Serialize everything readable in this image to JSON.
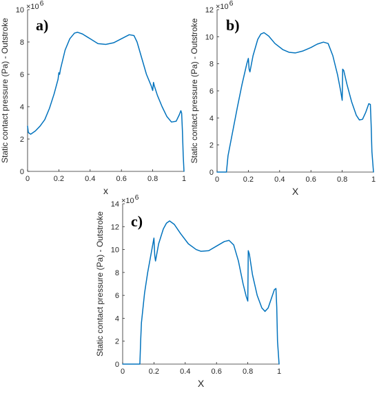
{
  "figure": {
    "line_color": "#0072BD",
    "axis_color": "#262626"
  },
  "chart_data": [
    {
      "type": "line",
      "panel_label": "a)",
      "xlabel": "x",
      "ylabel": "Static contact pressure (Pa) - Outstroke",
      "y_multiplier": "×10",
      "y_exponent": "6",
      "xlim": [
        0,
        1
      ],
      "ylim": [
        0,
        10
      ],
      "xticks": [
        "0",
        "0.2",
        "0.4",
        "0.6",
        "0.8",
        "1"
      ],
      "yticks": [
        "0",
        "2",
        "4",
        "6",
        "8",
        "10"
      ],
      "series": [
        {
          "x": [
            0,
            0.005,
            0.02,
            0.05,
            0.08,
            0.11,
            0.14,
            0.17,
            0.195,
            0.2,
            0.205,
            0.21,
            0.24,
            0.27,
            0.3,
            0.32,
            0.35,
            0.4,
            0.45,
            0.5,
            0.55,
            0.6,
            0.65,
            0.68,
            0.7,
            0.73,
            0.76,
            0.79,
            0.8,
            0.805,
            0.81,
            0.83,
            0.86,
            0.89,
            0.92,
            0.95,
            0.97,
            0.98,
            0.985,
            0.99,
            0.995,
            1.0
          ],
          "values": [
            2.8,
            2.4,
            2.3,
            2.5,
            2.8,
            3.2,
            3.9,
            4.8,
            5.7,
            6.1,
            6.0,
            6.3,
            7.5,
            8.2,
            8.55,
            8.6,
            8.5,
            8.2,
            7.9,
            7.85,
            7.95,
            8.2,
            8.45,
            8.4,
            8.0,
            7.0,
            6.0,
            5.3,
            5.0,
            5.5,
            5.3,
            4.7,
            4.0,
            3.4,
            3.05,
            3.1,
            3.5,
            3.75,
            3.6,
            2.5,
            1.0,
            0
          ]
        }
      ]
    },
    {
      "type": "line",
      "panel_label": "b)",
      "xlabel": "X",
      "ylabel": "Static contact pressure (Pa) - Outstroke",
      "y_multiplier": "×10",
      "y_exponent": "6",
      "xlim": [
        0,
        1
      ],
      "ylim": [
        0,
        12
      ],
      "xticks": [
        "0",
        "0.2",
        "0.4",
        "0.6",
        "0.8",
        "1"
      ],
      "yticks": [
        "0",
        "2",
        "4",
        "6",
        "8",
        "10",
        "12"
      ],
      "series": [
        {
          "x": [
            0,
            0.06,
            0.065,
            0.07,
            0.1,
            0.13,
            0.16,
            0.19,
            0.2,
            0.205,
            0.21,
            0.23,
            0.26,
            0.28,
            0.3,
            0.33,
            0.37,
            0.42,
            0.46,
            0.5,
            0.55,
            0.6,
            0.64,
            0.68,
            0.71,
            0.74,
            0.77,
            0.79,
            0.8,
            0.803,
            0.81,
            0.83,
            0.86,
            0.89,
            0.91,
            0.93,
            0.95,
            0.97,
            0.98,
            0.985,
            0.99,
            1.0
          ],
          "values": [
            0,
            0,
            0.6,
            1.2,
            3.0,
            4.8,
            6.5,
            8.0,
            8.4,
            7.6,
            7.4,
            8.6,
            9.8,
            10.2,
            10.3,
            10.05,
            9.5,
            9.05,
            8.85,
            8.8,
            8.95,
            9.2,
            9.45,
            9.6,
            9.5,
            8.6,
            7.2,
            6.0,
            5.3,
            7.6,
            7.5,
            6.5,
            5.2,
            4.2,
            3.85,
            3.9,
            4.4,
            5.05,
            5.0,
            3.5,
            1.5,
            0
          ]
        }
      ]
    },
    {
      "type": "line",
      "panel_label": "c)",
      "xlabel": "X",
      "ylabel": "Static contact pressure (Pa) - Outstroke",
      "y_multiplier": "×10",
      "y_exponent": "6",
      "xlim": [
        0,
        1
      ],
      "ylim": [
        0,
        14
      ],
      "xticks": [
        "0",
        "0.2",
        "0.4",
        "0.6",
        "0.8",
        "1"
      ],
      "yticks": [
        "0",
        "2",
        "4",
        "6",
        "8",
        "10",
        "12",
        "14"
      ],
      "series": [
        {
          "x": [
            0,
            0.11,
            0.115,
            0.12,
            0.14,
            0.16,
            0.18,
            0.2,
            0.205,
            0.21,
            0.23,
            0.26,
            0.28,
            0.3,
            0.33,
            0.37,
            0.42,
            0.47,
            0.5,
            0.55,
            0.6,
            0.65,
            0.68,
            0.71,
            0.74,
            0.77,
            0.79,
            0.8,
            0.803,
            0.81,
            0.83,
            0.86,
            0.89,
            0.91,
            0.93,
            0.95,
            0.97,
            0.98,
            0.985,
            0.99,
            1.0
          ],
          "values": [
            0,
            0,
            2.0,
            3.6,
            6.2,
            8.0,
            9.5,
            11.0,
            9.5,
            9.0,
            10.5,
            11.8,
            12.3,
            12.5,
            12.2,
            11.4,
            10.5,
            10.0,
            9.85,
            9.9,
            10.3,
            10.7,
            10.8,
            10.4,
            9.0,
            7.0,
            5.9,
            5.5,
            9.9,
            9.6,
            7.8,
            6.0,
            4.9,
            4.6,
            4.9,
            5.7,
            6.5,
            6.6,
            5.0,
            2.0,
            0
          ]
        }
      ]
    }
  ]
}
